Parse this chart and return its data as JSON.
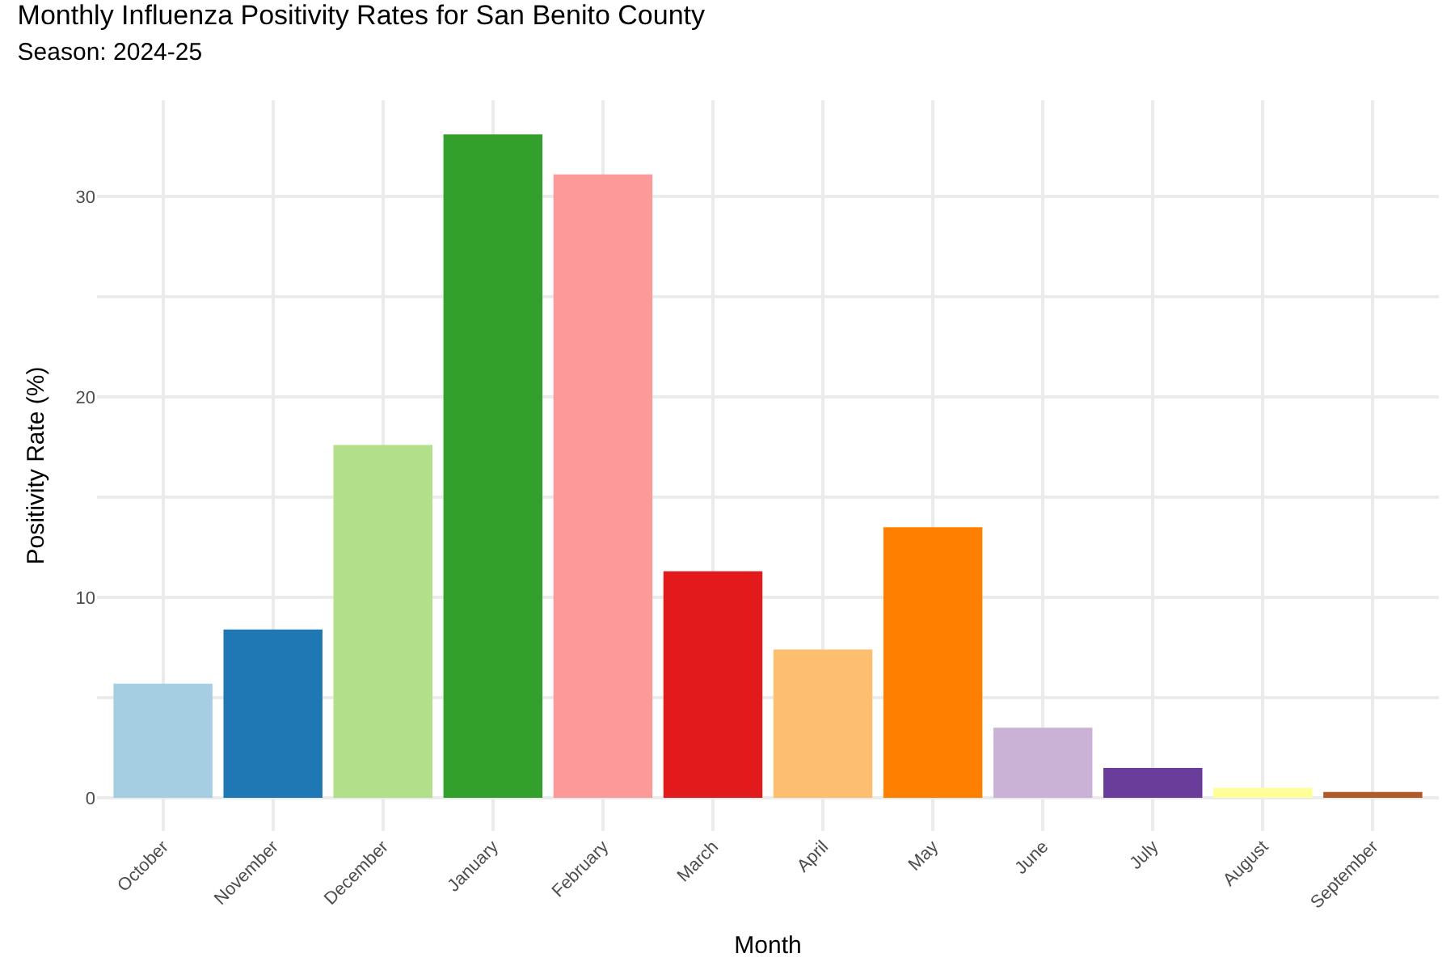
{
  "chart_data": {
    "type": "bar",
    "title": "Monthly Influenza Positivity Rates for San Benito County",
    "subtitle": "Season: 2024-25",
    "xlabel": "Month",
    "ylabel": "Positivity Rate (%)",
    "categories": [
      "October",
      "November",
      "December",
      "January",
      "February",
      "March",
      "April",
      "May",
      "June",
      "July",
      "August",
      "September"
    ],
    "values": [
      5.7,
      8.4,
      17.6,
      33.1,
      31.1,
      11.3,
      7.4,
      13.5,
      3.5,
      1.5,
      0.5,
      0.3
    ],
    "colors": [
      "#a6cee3",
      "#1f78b4",
      "#b2df8a",
      "#33a02c",
      "#fb9a99",
      "#e31a1c",
      "#fdbf6f",
      "#ff7f00",
      "#cab2d6",
      "#6a3d9a",
      "#ffff99",
      "#b15928"
    ],
    "ylim": [
      -1.65,
      34.8
    ],
    "yticks": [
      0,
      {
        "value": 5,
        "label": null
      },
      10,
      {
        "value": 15,
        "label": null
      },
      20,
      {
        "value": 25,
        "label": null
      },
      30
    ],
    "grid": true
  }
}
